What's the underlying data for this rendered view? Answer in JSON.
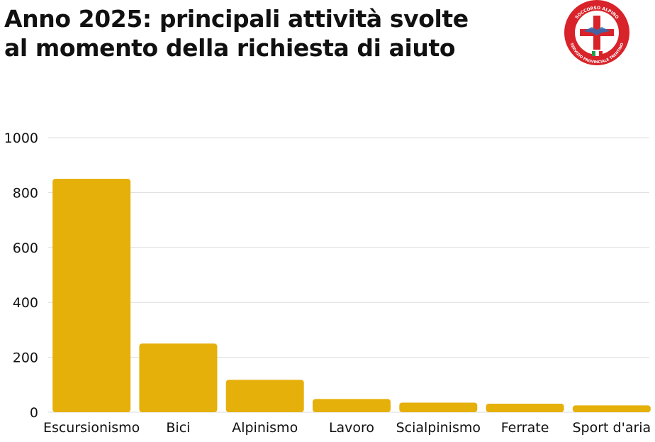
{
  "title_lines": [
    "Anno 2025: principali attività svolte",
    "al momento della richiesta di aiuto"
  ],
  "logo": {
    "text_top": "SOCCORSO ALPINO",
    "text_ring": "CORPO NAZIONALE SOCCORSO ALPINO E SPELEOLOGICO",
    "text_bottom": "SERVIZIO PROVINCIALE TRENTINO",
    "colors": {
      "ring": "#d8232a",
      "inner": "#ffffff",
      "cross": "#d8232a",
      "flag_green": "#1f9d47",
      "flag_red": "#d8232a"
    }
  },
  "chart_data": {
    "type": "bar",
    "categories": [
      "Escursionismo",
      "Bici",
      "Alpinismo",
      "Lavoro",
      "Scialpinismo",
      "Ferrate",
      "Sport d'aria"
    ],
    "values": [
      850,
      250,
      118,
      48,
      35,
      31,
      25
    ],
    "title": "Anno 2025: principali attività svolte al momento della richiesta di aiuto",
    "xlabel": "",
    "ylabel": "",
    "ylim": [
      0,
      1000
    ],
    "yticks": [
      0,
      200,
      400,
      600,
      800,
      1000
    ],
    "grid": true,
    "legend": "none",
    "colors": {
      "bar": "#e6b00b",
      "grid": "#dddddd",
      "text": "#111111"
    }
  }
}
